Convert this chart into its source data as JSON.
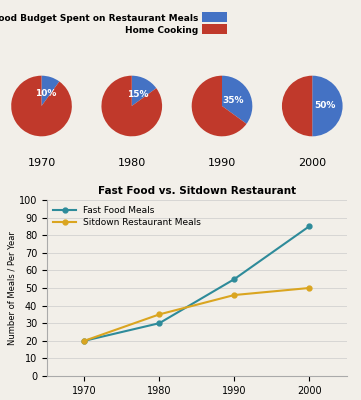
{
  "pie_years": [
    "1970",
    "1980",
    "1990",
    "2000"
  ],
  "pie_percentages": [
    10,
    15,
    35,
    50
  ],
  "pie_color_restaurant": "#4472C4",
  "pie_color_home": "#C0392B",
  "legend_restaurant": "Percentage of Food Budget Spent on Restaurant Meals",
  "legend_home": "Home Cooking",
  "line_years": [
    1970,
    1980,
    1990,
    2000
  ],
  "fast_food": [
    20,
    30,
    55,
    85
  ],
  "sitdown": [
    20,
    35,
    46,
    50
  ],
  "line_title": "Fast Food vs. Sitdown Restaurant",
  "fast_food_label": "Fast Food Meals",
  "sitdown_label": "Sitdown Restaurant Meals",
  "fast_food_color": "#2E8B9A",
  "sitdown_color": "#DAA520",
  "ylabel": "Number of Meals / Per Year",
  "ylim": [
    0,
    100
  ],
  "yticks": [
    0,
    10,
    20,
    30,
    40,
    50,
    60,
    70,
    80,
    90,
    100
  ],
  "bg_color": "#F2EFE9"
}
